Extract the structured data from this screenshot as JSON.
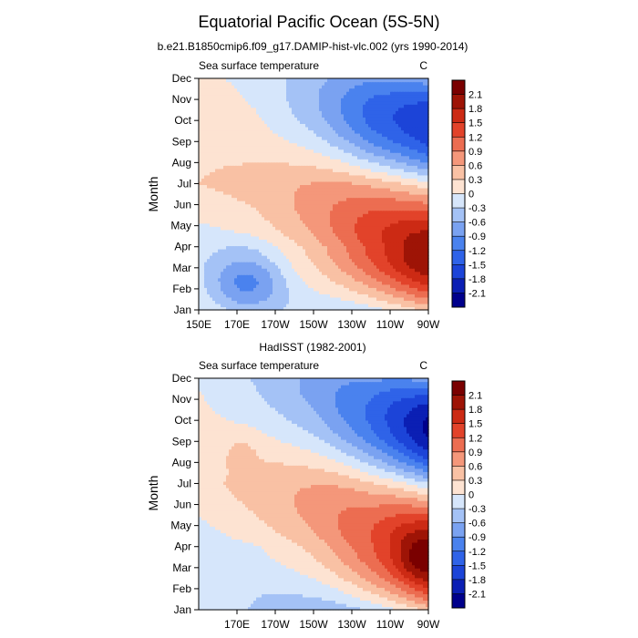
{
  "figure": {
    "title": "Equatorial Pacific Ocean (5S-5N)"
  },
  "colorbar": {
    "levels": [
      -2.1,
      -1.8,
      -1.5,
      -1.2,
      -0.9,
      -0.6,
      -0.3,
      0,
      0.3,
      0.6,
      0.9,
      1.2,
      1.5,
      1.8,
      2.1
    ],
    "level_labels": [
      "-2.1",
      "-1.8",
      "-1.5",
      "-1.2",
      "-0.9",
      "-0.6",
      "-0.3",
      "0",
      "0.3",
      "0.6",
      "0.9",
      "1.2",
      "1.5",
      "1.8",
      "2.1"
    ],
    "colors": [
      "#00008c",
      "#0b1fb4",
      "#1c44d8",
      "#2f63e8",
      "#4a82ee",
      "#7aa2f1",
      "#a4c2f6",
      "#d6e6fb",
      "#fde3d2",
      "#f9c1a4",
      "#f4977a",
      "#ec6d51",
      "#e2432a",
      "#cc2a14",
      "#9e1406",
      "#7a0000"
    ]
  },
  "chart_data": [
    {
      "type": "heatmap",
      "title": "b.e21.B1850cmip6.f09_g17.DAMIP-hist-vlc.002 (yrs 1990-2014)",
      "left_label": "Sea surface temperature",
      "right_label": "C",
      "ylabel": "Month",
      "xlim": [
        150,
        270
      ],
      "x_tick_values": [
        150,
        170,
        190,
        210,
        230,
        250,
        270
      ],
      "x_tick_labels": [
        "150E",
        "170E",
        "170W",
        "150W",
        "130W",
        "110W",
        "90W"
      ],
      "y_tick_labels": [
        "Jan",
        "Feb",
        "Mar",
        "Apr",
        "May",
        "Jun",
        "Jul",
        "Aug",
        "Sep",
        "Oct",
        "Nov",
        "Dec"
      ],
      "model": {
        "base": [
          {
            "m": 0,
            "v": 0.1
          },
          {
            "m": 3,
            "v": -0.2
          },
          {
            "m": 6,
            "v": 0.3
          },
          {
            "m": 9,
            "v": 0.2
          }
        ],
        "x_lines": [
          {
            "lon": 150,
            "a": 0,
            "ph": 4.5
          },
          {
            "lon": 180,
            "a": 0.2,
            "ph": 4.3
          },
          {
            "lon": 210,
            "a": 0.7,
            "ph": 3.9
          },
          {
            "lon": 240,
            "a": 1.5,
            "ph": 3.3
          },
          {
            "lon": 270,
            "a": 2.0,
            "ph": 2.8
          }
        ],
        "bumps": [
          {
            "lon": 175,
            "m": 1.3,
            "v": -0.95,
            "wlon": 14,
            "wm": 1.0
          },
          {
            "lon": 265,
            "m": 2.3,
            "v": 0.3,
            "wlon": 12,
            "wm": 1.2
          }
        ]
      }
    },
    {
      "type": "heatmap",
      "title": "HadISST (1982-2001)",
      "left_label": "Sea surface temperature",
      "right_label": "C",
      "ylabel": "Month",
      "xlim": [
        150,
        270
      ],
      "x_tick_values": [
        170,
        190,
        210,
        230,
        250,
        270
      ],
      "x_tick_labels": [
        "170E",
        "170W",
        "150W",
        "130W",
        "110W",
        "90W"
      ],
      "y_tick_labels": [
        "Jan",
        "Feb",
        "Mar",
        "Apr",
        "May",
        "Jun",
        "Jul",
        "Aug",
        "Sep",
        "Oct",
        "Nov",
        "Dec"
      ],
      "model": {
        "base": [
          {
            "m": 0,
            "v": -0.1
          },
          {
            "m": 3,
            "v": -0.2
          },
          {
            "m": 6,
            "v": 0.2
          },
          {
            "m": 9,
            "v": 0.1
          }
        ],
        "x_lines": [
          {
            "lon": 150,
            "a": 0,
            "ph": 4.5
          },
          {
            "lon": 180,
            "a": 0.3,
            "ph": 4.8
          },
          {
            "lon": 210,
            "a": 0.7,
            "ph": 4.1
          },
          {
            "lon": 240,
            "a": 1.35,
            "ph": 3.2
          },
          {
            "lon": 270,
            "a": 2.3,
            "ph": 2.6
          }
        ],
        "bumps": [
          {
            "lon": 264,
            "m": 2.5,
            "v": 0.4,
            "wlon": 7,
            "wm": 0.8
          },
          {
            "lon": 172,
            "m": 7.5,
            "v": 0.25,
            "wlon": 6,
            "wm": 0.6
          }
        ]
      }
    }
  ]
}
